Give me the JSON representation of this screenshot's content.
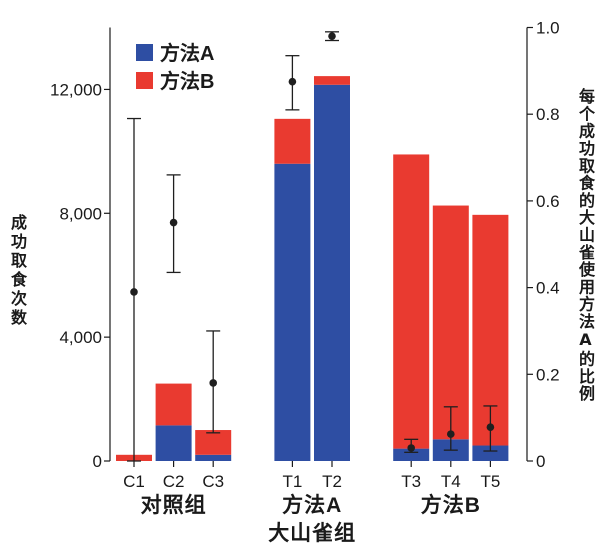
{
  "chart_data": {
    "type": "bar",
    "stacked": true,
    "title": "",
    "xlabel": "大山雀组",
    "ylabel": "成功取食次数",
    "y2label": "每个成功取食的大山雀使用方法A的比例",
    "categories": [
      "C1",
      "C2",
      "C3",
      "T1",
      "T2",
      "T3",
      "T4",
      "T5"
    ],
    "groups": [
      {
        "label": "对照组",
        "size": 3
      },
      {
        "label": "方法A",
        "size": 2
      },
      {
        "label": "方法B",
        "size": 3
      }
    ],
    "series": [
      {
        "name": "方法A",
        "color": "#2e4ea3",
        "values": [
          0,
          1150,
          200,
          9600,
          12150,
          400,
          700,
          500
        ]
      },
      {
        "name": "方法B",
        "color": "#e93a30",
        "values": [
          200,
          1350,
          800,
          1450,
          280,
          9500,
          7550,
          7450
        ]
      }
    ],
    "points_right_axis": {
      "color": "#1f1f1f",
      "mean": [
        0.39,
        0.55,
        0.18,
        0.875,
        0.98,
        0.03,
        0.062,
        0.078
      ],
      "lower": [
        0.0,
        0.435,
        0.065,
        0.81,
        0.97,
        0.02,
        0.025,
        0.023
      ],
      "upper": [
        0.79,
        0.66,
        0.3,
        0.935,
        0.99,
        0.05,
        0.125,
        0.127
      ]
    },
    "ylim": [
      0,
      14000
    ],
    "yticks": [
      0,
      4000,
      8000,
      12000
    ],
    "ytick_labels": [
      "0",
      "4,000",
      "8,000",
      "12,000"
    ],
    "y2lim": [
      0,
      1.0
    ],
    "y2ticks": [
      0,
      0.2,
      0.4,
      0.6,
      0.8,
      1.0
    ],
    "y2tick_labels": [
      "0",
      "0.2",
      "0.4",
      "0.6",
      "0.8",
      "1.0"
    ],
    "legend_position": "top-left",
    "grid": false
  }
}
